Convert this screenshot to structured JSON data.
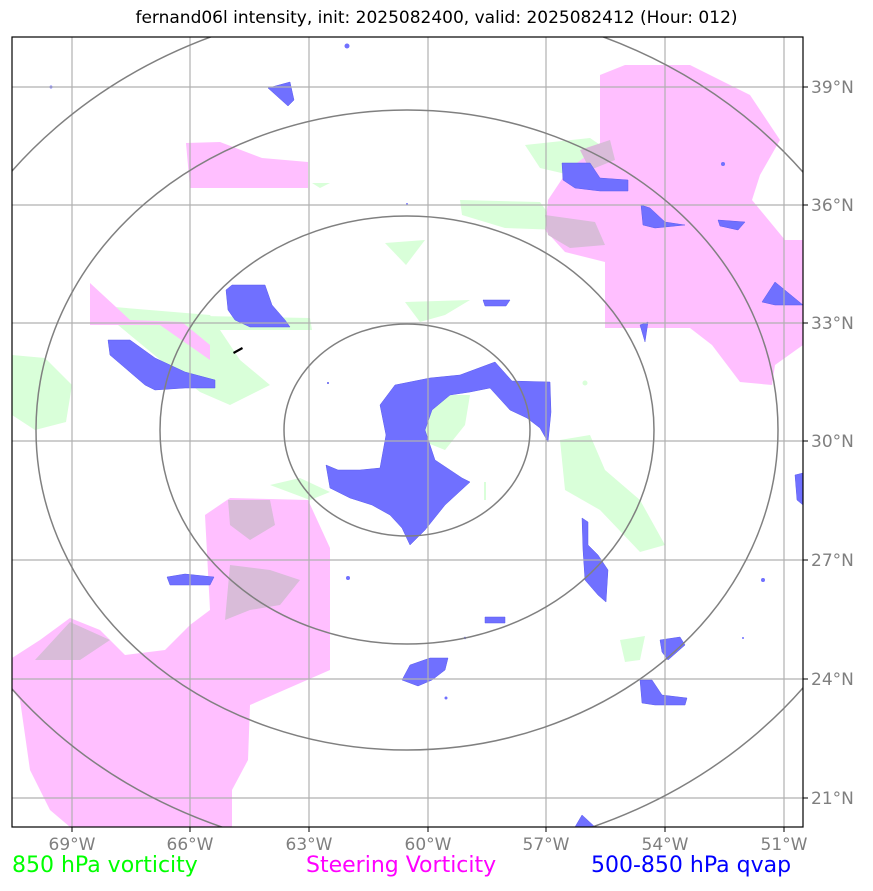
{
  "title": "fernand06l intensity, init: 2025082400, valid: 2025082412 (Hour: 012)",
  "map": {
    "lon_labels": [
      "69°W",
      "66°W",
      "63°W",
      "60°W",
      "57°W",
      "54°W",
      "51°W"
    ],
    "lat_labels": [
      "39°N",
      "36°N",
      "33°N",
      "30°N",
      "27°N",
      "24°N",
      "21°N"
    ],
    "range_rings": 4
  },
  "legend": {
    "vort850": {
      "label": "850 hPa vorticity",
      "color": "#00ff00"
    },
    "steering": {
      "label": "Steering Vorticity",
      "color": "#ff00ff"
    },
    "qvap": {
      "label": "500-850 hPa qvap",
      "color": "#0000ff"
    }
  },
  "colors": {
    "vort850_fill": "#d9ffd9",
    "steering_fill": "#ffbfff",
    "qvap_fill": "#7070ff",
    "grid": "#b0b0b0",
    "rings": "#808080"
  }
}
